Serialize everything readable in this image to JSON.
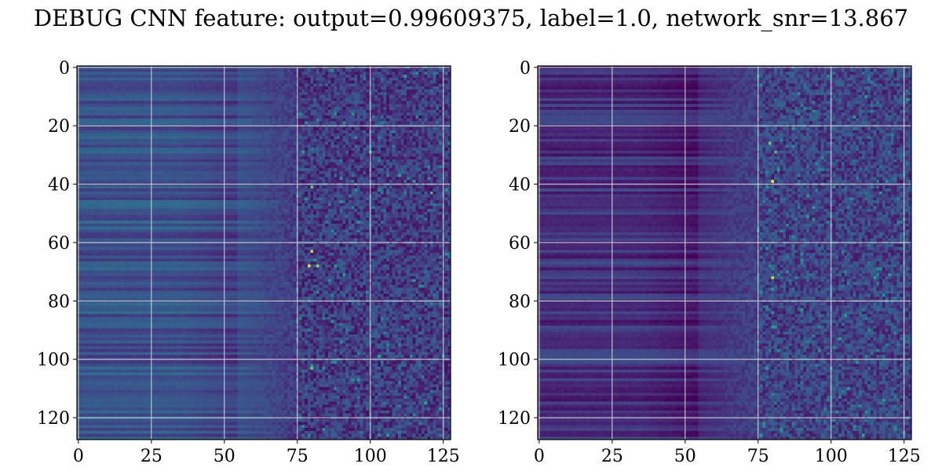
{
  "title": "DEBUG CNN feature: output=0.99609375, label=1.0, network_snr=13.867",
  "colors": {
    "grid": "#d9d9d9",
    "axes": "#000000",
    "colormap": "viridis"
  },
  "chart_data": [
    {
      "type": "heatmap",
      "title": "",
      "xlabel": "",
      "ylabel": "",
      "size": [
        128,
        128
      ],
      "xlim": [
        0,
        127
      ],
      "ylim": [
        127,
        0
      ],
      "colormap": "viridis",
      "grid": true,
      "xticks": [
        0,
        25,
        50,
        75,
        100,
        125
      ],
      "yticks": [
        0,
        20,
        40,
        60,
        80,
        100,
        120
      ],
      "xtick_labels": [
        "0",
        "25",
        "50",
        "75",
        "100",
        "125"
      ],
      "ytick_labels": [
        "0",
        "20",
        "40",
        "60",
        "80",
        "100",
        "120"
      ],
      "description_values": {
        "left_columns_0_50_mean": 0.32,
        "right_columns_75_127_mean": 0.22,
        "hotspots": [
          [
            80,
            63,
            0.95
          ],
          [
            79,
            68,
            0.98
          ],
          [
            82,
            68,
            0.9
          ],
          [
            100,
            29,
            0.8
          ],
          [
            80,
            41,
            0.85
          ],
          [
            121,
            43,
            0.8
          ],
          [
            80,
            103,
            0.85
          ],
          [
            103,
            99,
            0.75
          ],
          [
            77,
            29,
            0.75
          ],
          [
            88,
            68,
            0.7
          ]
        ]
      }
    },
    {
      "type": "heatmap",
      "title": "",
      "xlabel": "",
      "ylabel": "",
      "size": [
        128,
        128
      ],
      "xlim": [
        0,
        127
      ],
      "ylim": [
        127,
        0
      ],
      "colormap": "viridis",
      "grid": true,
      "xticks": [
        0,
        25,
        50,
        75,
        100,
        125
      ],
      "yticks": [
        0,
        20,
        40,
        60,
        80,
        100,
        120
      ],
      "xtick_labels": [
        "0",
        "25",
        "50",
        "75",
        "100",
        "125"
      ],
      "ytick_labels": [
        "0",
        "20",
        "40",
        "60",
        "80",
        "100",
        "120"
      ],
      "description_values": {
        "left_columns_0_50_mean": 0.18,
        "right_columns_75_127_mean": 0.25,
        "hotspots": [
          [
            80,
            39,
            0.98
          ],
          [
            80,
            72,
            0.95
          ],
          [
            79,
            26,
            0.85
          ],
          [
            81,
            29,
            0.8
          ],
          [
            82,
            35,
            0.75
          ],
          [
            78,
            103,
            0.7
          ],
          [
            76,
            126,
            0.7
          ],
          [
            80,
            76,
            0.7
          ]
        ]
      }
    }
  ]
}
